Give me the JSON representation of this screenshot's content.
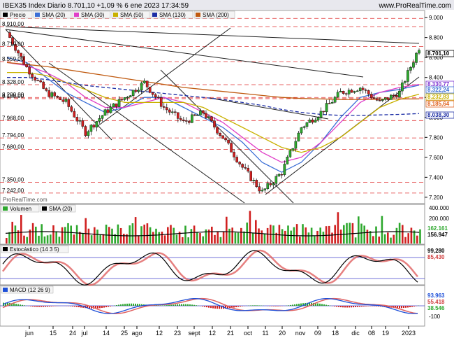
{
  "header": {
    "title": "IBEX35 Index Diario 8.701,10 +1,09 % 6 ene 2023 17:34:59",
    "site": "www.ProRealTime.com"
  },
  "watermark": "ProRealTime.com",
  "price_panel": {
    "legend": [
      "Precio",
      "SMA (20)",
      "SMA (30)",
      "SMA (50)",
      "SMA (130)",
      "SMA (200)"
    ],
    "left_labels": [
      "8.992,00",
      "8.910,00",
      "8.710,00",
      "8.559,00",
      "8.328,00",
      "8.200,00",
      "8.188,00",
      "7.968,00",
      "7.794,00",
      "7.680,00",
      "7.350,00",
      "7.242,00"
    ],
    "right_ticks": [
      "9.000",
      "8.800",
      "8.600",
      "8.400",
      "8.200",
      "8.000",
      "7.800",
      "7.600",
      "7.400",
      "7.200"
    ],
    "right_badges": [
      {
        "text": "8.701,10",
        "color": "#000000"
      },
      {
        "text": "8.330,77",
        "color": "#7b2fd0"
      },
      {
        "text": "8.322,24",
        "color": "#3b6fd6"
      },
      {
        "text": "8.232,83",
        "color": "#c9b100"
      },
      {
        "text": "8.185,64",
        "color": "#e0601d"
      },
      {
        "text": "8.038,30",
        "color": "#1d2ea5"
      }
    ]
  },
  "volume_panel": {
    "legend": [
      "Volumen",
      "SMA (20)"
    ],
    "right_ticks": [
      "400.000",
      "200.000"
    ],
    "right_badges": [
      {
        "text": "162.161",
        "color": "#2ea82e"
      },
      {
        "text": "156.947",
        "color": "#000000"
      }
    ]
  },
  "stoch_panel": {
    "legend": [
      "Estocástico (14 3 5)"
    ],
    "right_badges": [
      {
        "text": "99,280",
        "color": "#000000"
      },
      {
        "text": "85,430",
        "color": "#d04040"
      }
    ]
  },
  "macd_panel": {
    "legend": [
      "MACD (12 26 9)"
    ],
    "right_ticks": [
      "-100"
    ],
    "right_badges": [
      {
        "text": "93.963",
        "color": "#1d4fd8"
      },
      {
        "text": "55.418",
        "color": "#d04040"
      },
      {
        "text": "38.546",
        "color": "#2ea82e"
      }
    ]
  },
  "x_axis": [
    "jun",
    "15",
    "24",
    "jul",
    "14",
    "25",
    "ago",
    "12",
    "23",
    "sept",
    "12",
    "21",
    "oct",
    "11",
    "20",
    "nov",
    "09",
    "18",
    "dic",
    "08",
    "19",
    "2023"
  ],
  "colors": {
    "up": "#2ea82e",
    "down": "#d02020",
    "sma20": "#3b6fd6",
    "sma30": "#e040c8",
    "sma50": "#c9b100",
    "sma130": "#1d2ea5",
    "sma200": "#c05a10"
  },
  "chart_data": {
    "type": "line",
    "title": "IBEX35 Index Diario",
    "x": [
      "jun",
      "15",
      "24",
      "jul",
      "14",
      "25",
      "ago",
      "12",
      "23",
      "sept",
      "12",
      "21",
      "oct",
      "11",
      "20",
      "nov",
      "09",
      "18",
      "dic",
      "08",
      "19",
      "2023"
    ],
    "series": [
      {
        "name": "Precio",
        "values": [
          8850,
          8500,
          8250,
          8150,
          7850,
          8050,
          8200,
          8350,
          8100,
          7950,
          8050,
          7800,
          7500,
          7250,
          7450,
          7900,
          8050,
          8250,
          8300,
          8150,
          8250,
          8701.1
        ]
      },
      {
        "name": "SMA (20)",
        "values": [
          8600,
          8550,
          8400,
          8250,
          8150,
          8050,
          8100,
          8200,
          8200,
          8100,
          8000,
          7900,
          7750,
          7550,
          7450,
          7550,
          7750,
          8000,
          8200,
          8250,
          8280,
          8322.24
        ]
      },
      {
        "name": "SMA (30)",
        "values": [
          8550,
          8520,
          8450,
          8350,
          8200,
          8100,
          8100,
          8150,
          8200,
          8150,
          8050,
          7950,
          7800,
          7650,
          7550,
          7600,
          7750,
          7950,
          8150,
          8250,
          8300,
          8330.77
        ]
      },
      {
        "name": "SMA (50)",
        "values": [
          8450,
          8450,
          8420,
          8350,
          8280,
          8200,
          8150,
          8150,
          8150,
          8150,
          8100,
          8000,
          7900,
          7800,
          7700,
          7650,
          7700,
          7800,
          7950,
          8100,
          8180,
          8232.83
        ]
      },
      {
        "name": "SMA (130)",
        "values": [
          8400,
          8400,
          8380,
          8350,
          8320,
          8300,
          8280,
          8260,
          8240,
          8220,
          8200,
          8180,
          8150,
          8120,
          8080,
          8050,
          8030,
          8020,
          8020,
          8025,
          8030,
          8038.3
        ]
      },
      {
        "name": "SMA (200)",
        "values": [
          8550,
          8530,
          8510,
          8480,
          8450,
          8420,
          8390,
          8360,
          8330,
          8300,
          8280,
          8260,
          8240,
          8220,
          8200,
          8190,
          8185,
          8180,
          8180,
          8182,
          8184,
          8185.64
        ]
      }
    ],
    "ylim": [
      7150,
      9050
    ],
    "grid": true,
    "legend": "top-left"
  }
}
